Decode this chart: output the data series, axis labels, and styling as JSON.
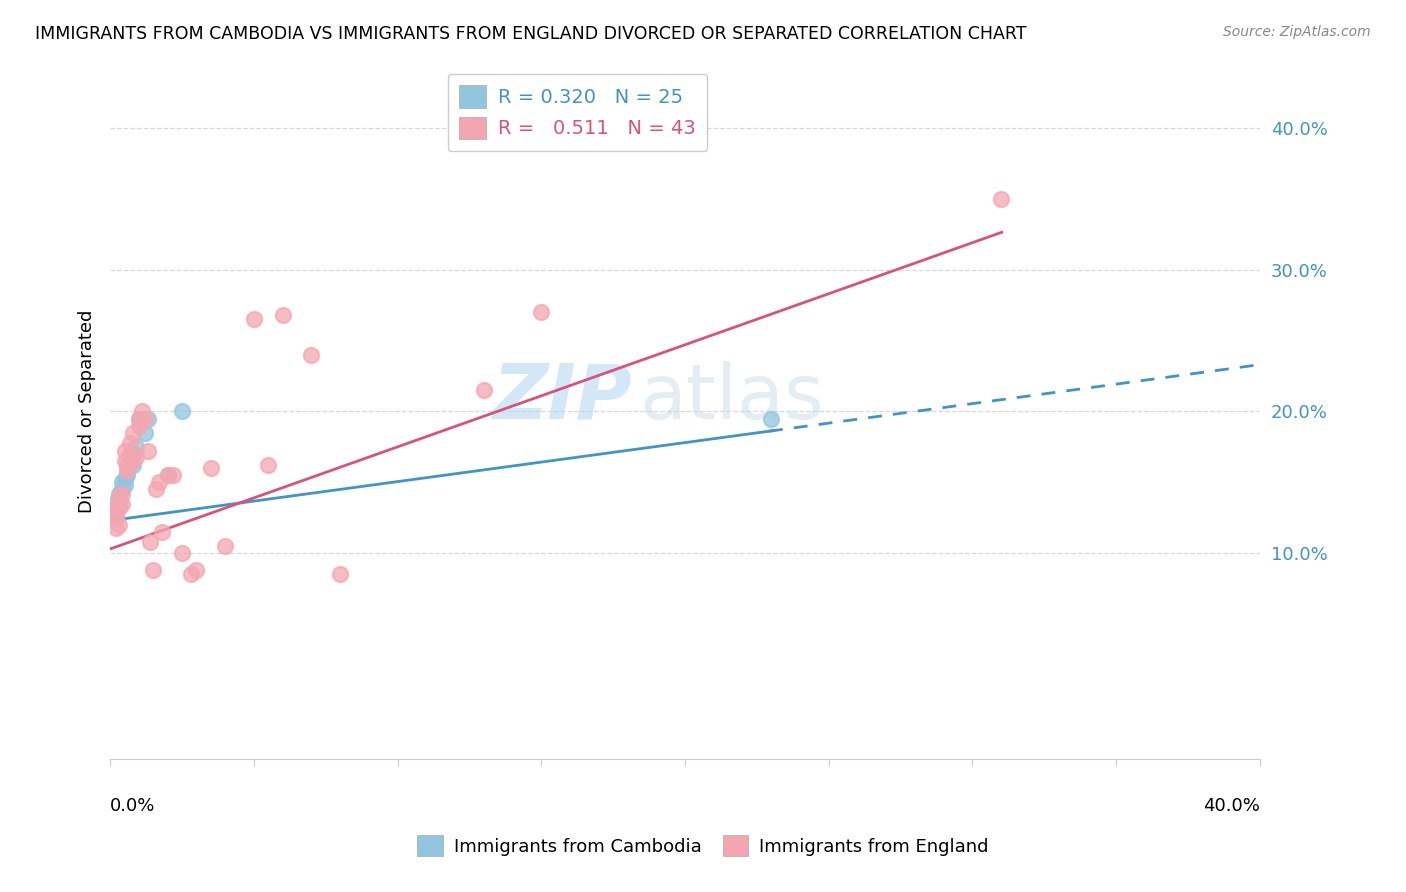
{
  "title": "IMMIGRANTS FROM CAMBODIA VS IMMIGRANTS FROM ENGLAND DIVORCED OR SEPARATED CORRELATION CHART",
  "source": "Source: ZipAtlas.com",
  "ylabel": "Divorced or Separated",
  "ytick_values": [
    0.1,
    0.2,
    0.3,
    0.4
  ],
  "ytick_labels": [
    "10.0%",
    "20.0%",
    "30.0%",
    "40.0%"
  ],
  "xlim": [
    0.0,
    0.4
  ],
  "ylim": [
    -0.045,
    0.445
  ],
  "legend_r_cambodia": "0.320",
  "legend_n_cambodia": "25",
  "legend_r_england": "0.511",
  "legend_n_england": "43",
  "color_cambodia": "#92c5de",
  "color_england": "#f4a6b0",
  "trendline_cambodia_color": "#4393c3",
  "trendline_england_color": "#d6537a",
  "watermark_line1": "ZIP",
  "watermark_line2": "atlas",
  "cambodia_x": [
    0.001,
    0.001,
    0.002,
    0.002,
    0.002,
    0.003,
    0.003,
    0.003,
    0.004,
    0.004,
    0.005,
    0.005,
    0.006,
    0.006,
    0.007,
    0.007,
    0.008,
    0.008,
    0.009,
    0.01,
    0.012,
    0.013,
    0.02,
    0.025,
    0.23
  ],
  "cambodia_y": [
    0.13,
    0.135,
    0.128,
    0.132,
    0.125,
    0.138,
    0.142,
    0.133,
    0.15,
    0.145,
    0.152,
    0.148,
    0.158,
    0.155,
    0.163,
    0.168,
    0.17,
    0.162,
    0.175,
    0.195,
    0.185,
    0.195,
    0.155,
    0.2,
    0.195
  ],
  "england_x": [
    0.001,
    0.001,
    0.002,
    0.002,
    0.003,
    0.003,
    0.003,
    0.004,
    0.004,
    0.005,
    0.005,
    0.006,
    0.006,
    0.007,
    0.007,
    0.008,
    0.008,
    0.009,
    0.01,
    0.01,
    0.011,
    0.012,
    0.013,
    0.014,
    0.015,
    0.016,
    0.017,
    0.018,
    0.02,
    0.022,
    0.025,
    0.028,
    0.03,
    0.035,
    0.04,
    0.05,
    0.055,
    0.06,
    0.07,
    0.08,
    0.13,
    0.15,
    0.31
  ],
  "england_y": [
    0.128,
    0.132,
    0.118,
    0.125,
    0.12,
    0.132,
    0.14,
    0.135,
    0.142,
    0.165,
    0.172,
    0.158,
    0.162,
    0.17,
    0.178,
    0.165,
    0.185,
    0.168,
    0.19,
    0.195,
    0.2,
    0.195,
    0.172,
    0.108,
    0.088,
    0.145,
    0.15,
    0.115,
    0.155,
    0.155,
    0.1,
    0.085,
    0.088,
    0.16,
    0.105,
    0.265,
    0.162,
    0.268,
    0.24,
    0.085,
    0.215,
    0.27,
    0.35
  ],
  "grid_color": "#d8d8d8",
  "spine_color": "#cccccc",
  "trendline_cambodia_intercept": 0.123,
  "trendline_cambodia_slope": 0.275,
  "trendline_england_intercept": 0.103,
  "trendline_england_slope": 0.72
}
